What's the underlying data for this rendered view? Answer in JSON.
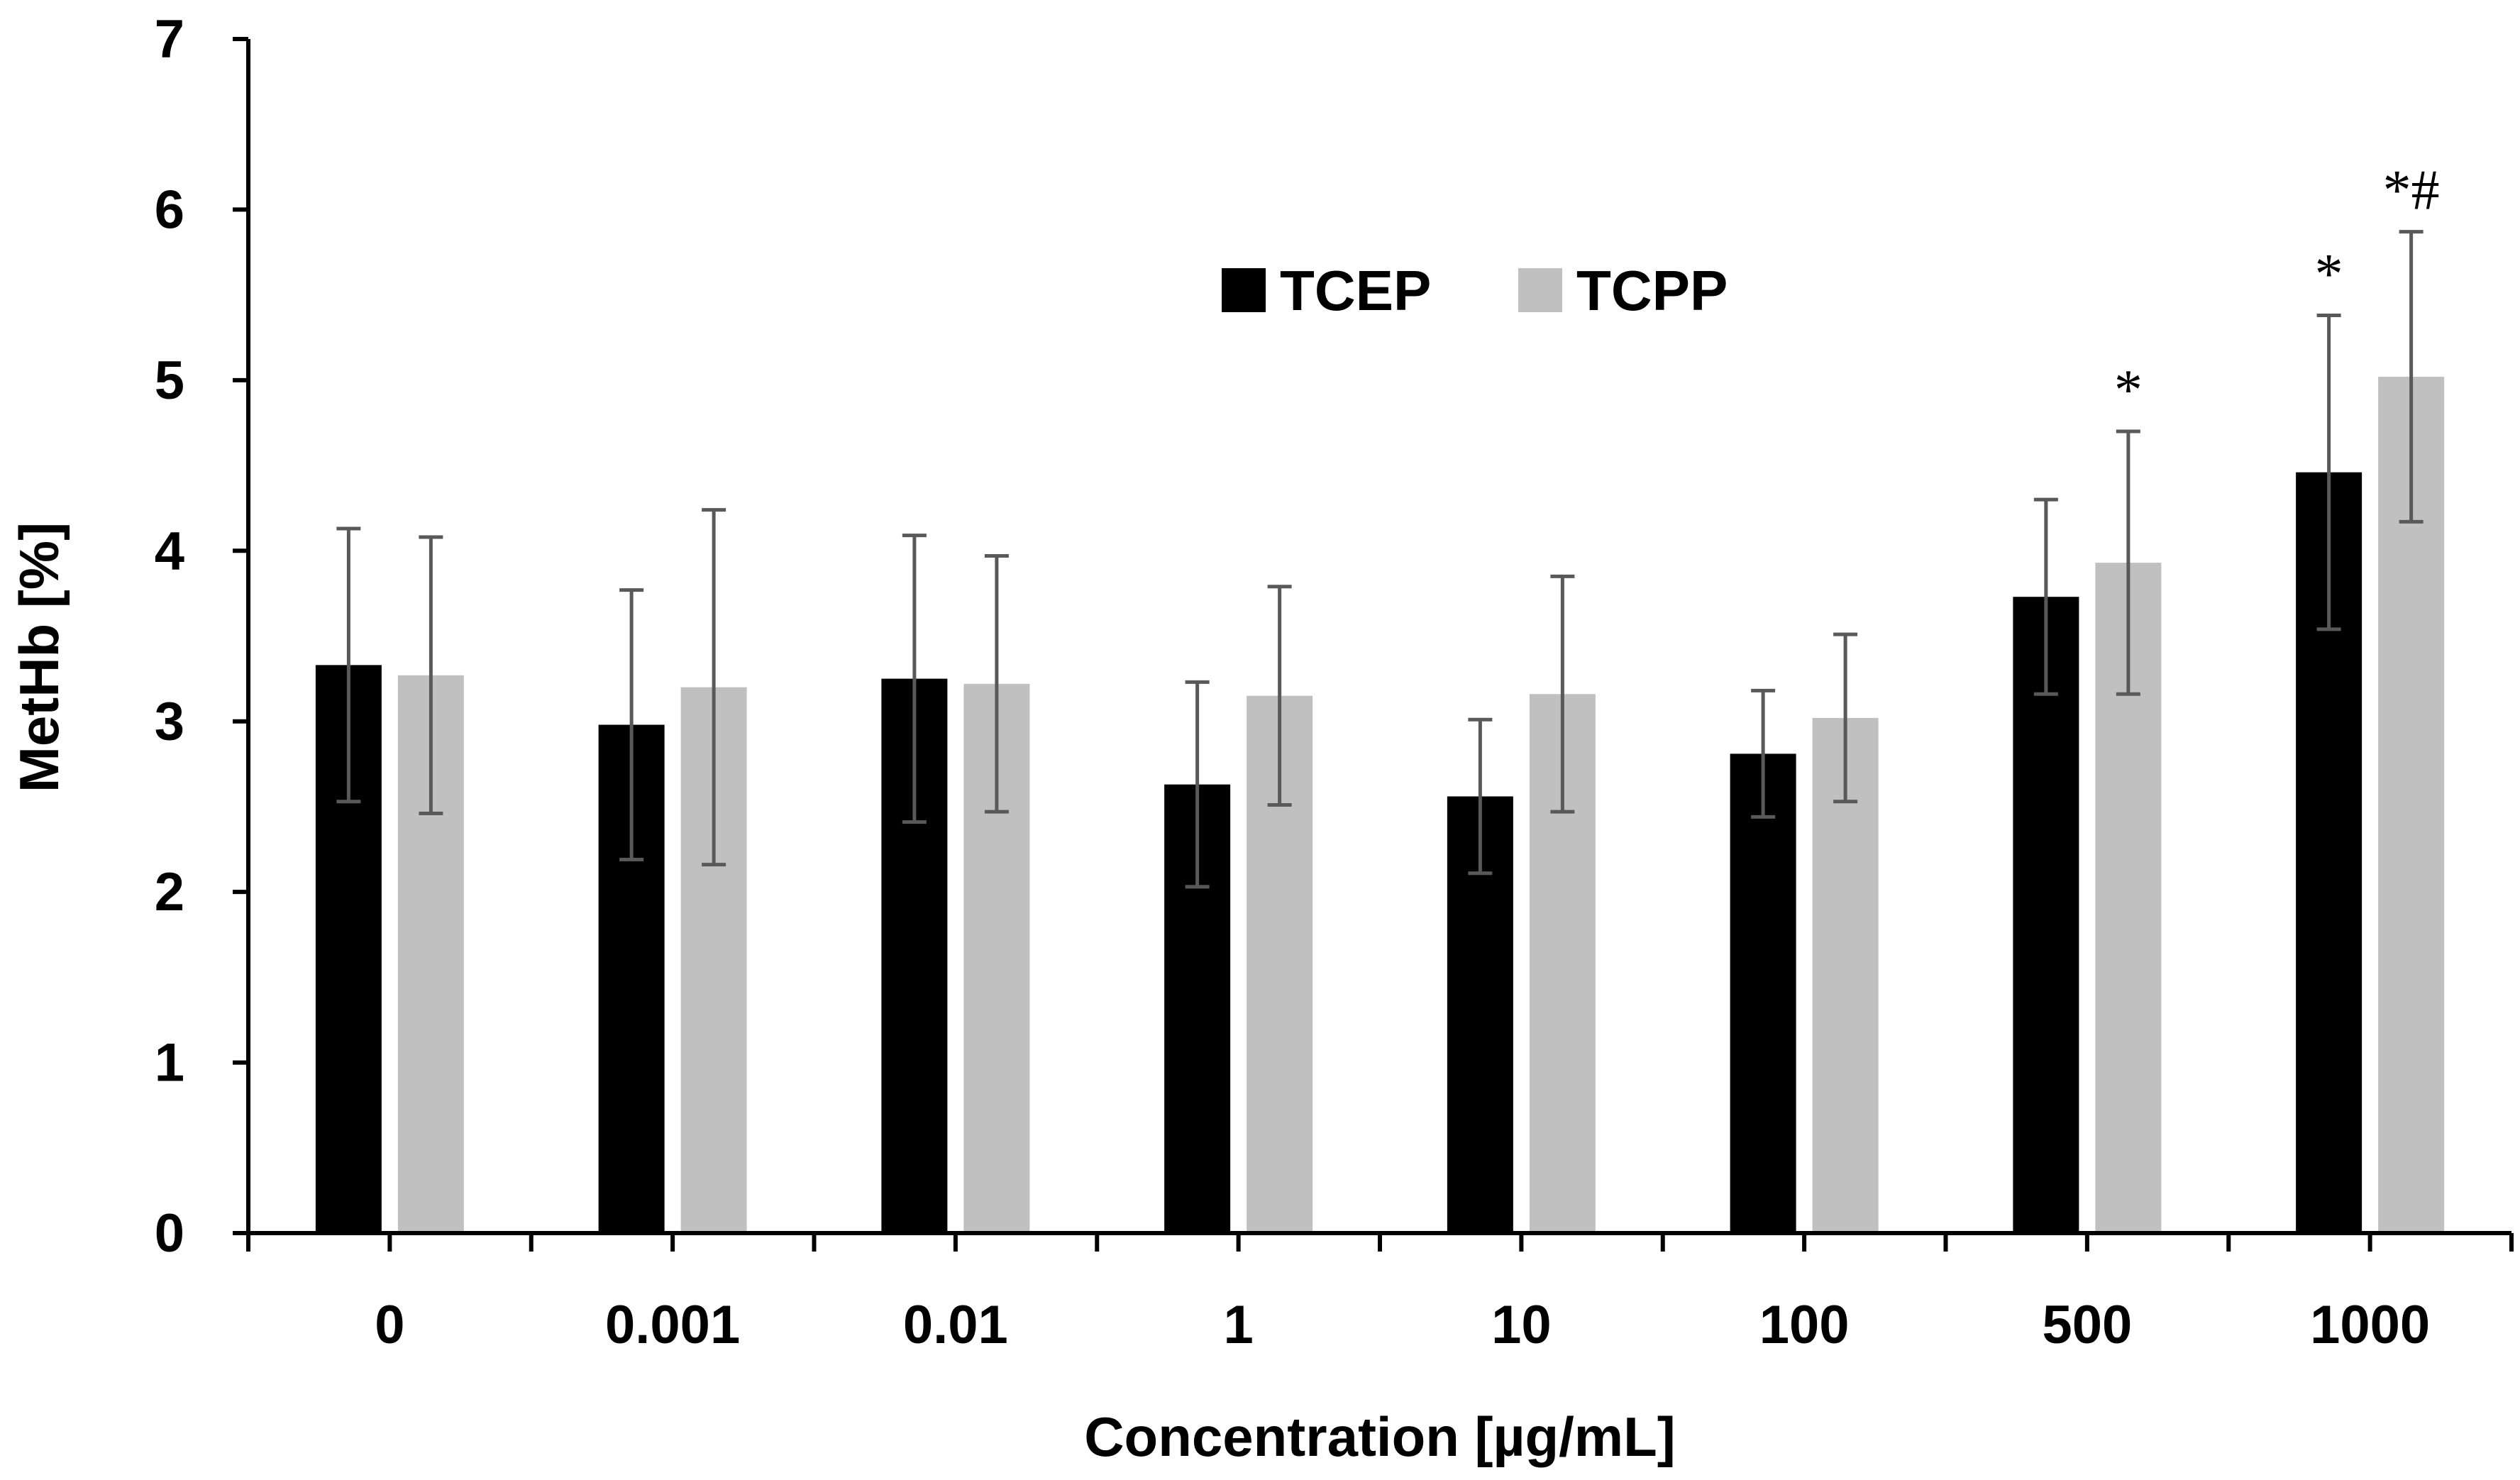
{
  "chart_data": {
    "type": "bar",
    "xlabel": "Concentration [µg/mL]",
    "ylabel": "MetHb [%]",
    "ylim": [
      0,
      7
    ],
    "yticks": [
      "0",
      "1",
      "2",
      "3",
      "4",
      "5",
      "6",
      "7"
    ],
    "categories": [
      "0",
      "0.001",
      "0.01",
      "1",
      "10",
      "100",
      "500",
      "1000"
    ],
    "series": [
      {
        "name": "TCEP",
        "color": "#000000",
        "values": [
          3.33,
          2.98,
          3.25,
          2.63,
          2.56,
          2.81,
          3.73,
          4.46
        ],
        "errors": [
          0.8,
          0.79,
          0.84,
          0.6,
          0.45,
          0.37,
          0.57,
          0.92
        ]
      },
      {
        "name": "TCPP",
        "color": "#c0c0c0",
        "values": [
          3.27,
          3.2,
          3.22,
          3.15,
          3.16,
          3.02,
          3.93,
          5.02
        ],
        "errors": [
          0.81,
          1.04,
          0.75,
          0.64,
          0.69,
          0.49,
          0.77,
          0.85
        ]
      }
    ],
    "annotations": [
      {
        "category": "500",
        "series": "TCPP",
        "text": "*"
      },
      {
        "category": "1000",
        "series": "TCEP",
        "text": "*"
      },
      {
        "category": "1000",
        "series": "TCPP",
        "text": "*#"
      }
    ],
    "legend_position": "top-center",
    "grid": false
  }
}
